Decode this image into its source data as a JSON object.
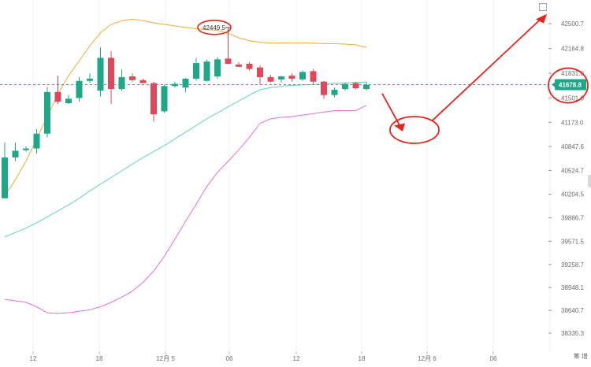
{
  "chart_data": {
    "type": "candlestick",
    "y_ticks": [
      "42500.7",
      "42164.8",
      "41831.0",
      "41501.0",
      "41173.0",
      "40847.6",
      "40524.7",
      "40204.5",
      "39886.7",
      "39571.5",
      "39258.7",
      "38948.1",
      "38640.7",
      "38335.3"
    ],
    "x_ticks": [
      "12",
      "18",
      "12月 5",
      "06",
      "12",
      "18",
      "12月 6",
      "06"
    ],
    "ylim": [
      38290,
      42800
    ],
    "current_price": "41678.8",
    "high_label": "42449.5",
    "corner_text": "筹 增",
    "colors": {
      "up": "#1ea887",
      "down": "#e0485a",
      "upper_band": "#f2a93b",
      "middle_band": "#5fd6b8",
      "lower_band": "#e86fd0",
      "annotation": "#e8231c",
      "price_line": "#1ea887"
    },
    "candles": [
      {
        "o": 40150,
        "h": 40900,
        "l": 40150,
        "c": 40700
      },
      {
        "o": 40700,
        "h": 40900,
        "l": 40650,
        "c": 40790
      },
      {
        "o": 40800,
        "h": 40850,
        "l": 40780,
        "c": 40820
      },
      {
        "o": 40820,
        "h": 41080,
        "l": 40750,
        "c": 41020
      },
      {
        "o": 41020,
        "h": 41650,
        "l": 40970,
        "c": 41580
      },
      {
        "o": 41580,
        "h": 41800,
        "l": 41420,
        "c": 41450
      },
      {
        "o": 41430,
        "h": 41540,
        "l": 41420,
        "c": 41490
      },
      {
        "o": 41500,
        "h": 41780,
        "l": 41450,
        "c": 41730
      },
      {
        "o": 41730,
        "h": 41830,
        "l": 41700,
        "c": 41760
      },
      {
        "o": 41600,
        "h": 42180,
        "l": 41520,
        "c": 42040
      },
      {
        "o": 42040,
        "h": 42130,
        "l": 41420,
        "c": 41620
      },
      {
        "o": 41620,
        "h": 41880,
        "l": 41600,
        "c": 41780
      },
      {
        "o": 41790,
        "h": 41830,
        "l": 41720,
        "c": 41740
      },
      {
        "o": 41740,
        "h": 41760,
        "l": 41700,
        "c": 41700
      },
      {
        "o": 41700,
        "h": 41720,
        "l": 41180,
        "c": 41280
      },
      {
        "o": 41320,
        "h": 41680,
        "l": 41300,
        "c": 41660
      },
      {
        "o": 41660,
        "h": 41720,
        "l": 41640,
        "c": 41690
      },
      {
        "o": 41640,
        "h": 41770,
        "l": 41580,
        "c": 41760
      },
      {
        "o": 41760,
        "h": 42040,
        "l": 41730,
        "c": 41970
      },
      {
        "o": 41730,
        "h": 42020,
        "l": 41720,
        "c": 41990
      },
      {
        "o": 41790,
        "h": 42050,
        "l": 41760,
        "c": 42020
      },
      {
        "o": 42030,
        "h": 42450,
        "l": 41960,
        "c": 41960
      },
      {
        "o": 41950,
        "h": 41980,
        "l": 41920,
        "c": 41920
      },
      {
        "o": 41960,
        "h": 41980,
        "l": 41870,
        "c": 41890
      },
      {
        "o": 41910,
        "h": 41940,
        "l": 41680,
        "c": 41780
      },
      {
        "o": 41780,
        "h": 41810,
        "l": 41710,
        "c": 41720
      },
      {
        "o": 41750,
        "h": 41800,
        "l": 41710,
        "c": 41790
      },
      {
        "o": 41800,
        "h": 41830,
        "l": 41720,
        "c": 41760
      },
      {
        "o": 41750,
        "h": 41870,
        "l": 41730,
        "c": 41850
      },
      {
        "o": 41860,
        "h": 41890,
        "l": 41690,
        "c": 41720
      },
      {
        "o": 41720,
        "h": 41730,
        "l": 41490,
        "c": 41540
      },
      {
        "o": 41540,
        "h": 41640,
        "l": 41510,
        "c": 41610
      },
      {
        "o": 41620,
        "h": 41700,
        "l": 41600,
        "c": 41690
      },
      {
        "o": 41700,
        "h": 41720,
        "l": 41620,
        "c": 41630
      },
      {
        "o": 41620,
        "h": 41720,
        "l": 41600,
        "c": 41678.8
      }
    ],
    "upper_band": [
      [
        40180,
        40400,
        40650,
        40950,
        41250,
        41550,
        41800,
        42000,
        42200,
        42380,
        42490,
        42540,
        42560,
        42540,
        42510,
        42490,
        42470,
        42450,
        42430,
        42420,
        42410,
        42370,
        42310,
        42270,
        42250,
        42240,
        42240,
        42240,
        42240,
        42240,
        42230,
        42230,
        42225,
        42215,
        42180
      ]
    ],
    "middle_band": [
      39630,
      39690,
      39750,
      39820,
      39900,
      39980,
      40060,
      40150,
      40250,
      40340,
      40430,
      40520,
      40610,
      40700,
      40780,
      40860,
      40950,
      41040,
      41130,
      41220,
      41300,
      41380,
      41460,
      41540,
      41610,
      41640,
      41660,
      41670,
      41675,
      41680,
      41690,
      41700,
      41705,
      41710,
      41715
    ],
    "lower_band": [
      38790,
      38770,
      38750,
      38690,
      38610,
      38600,
      38610,
      38630,
      38650,
      38690,
      38750,
      38820,
      38900,
      39020,
      39170,
      39370,
      39600,
      39840,
      40070,
      40310,
      40500,
      40650,
      40800,
      40970,
      41160,
      41220,
      41240,
      41250,
      41270,
      41290,
      41310,
      41330,
      41330,
      41330,
      41400
    ]
  }
}
